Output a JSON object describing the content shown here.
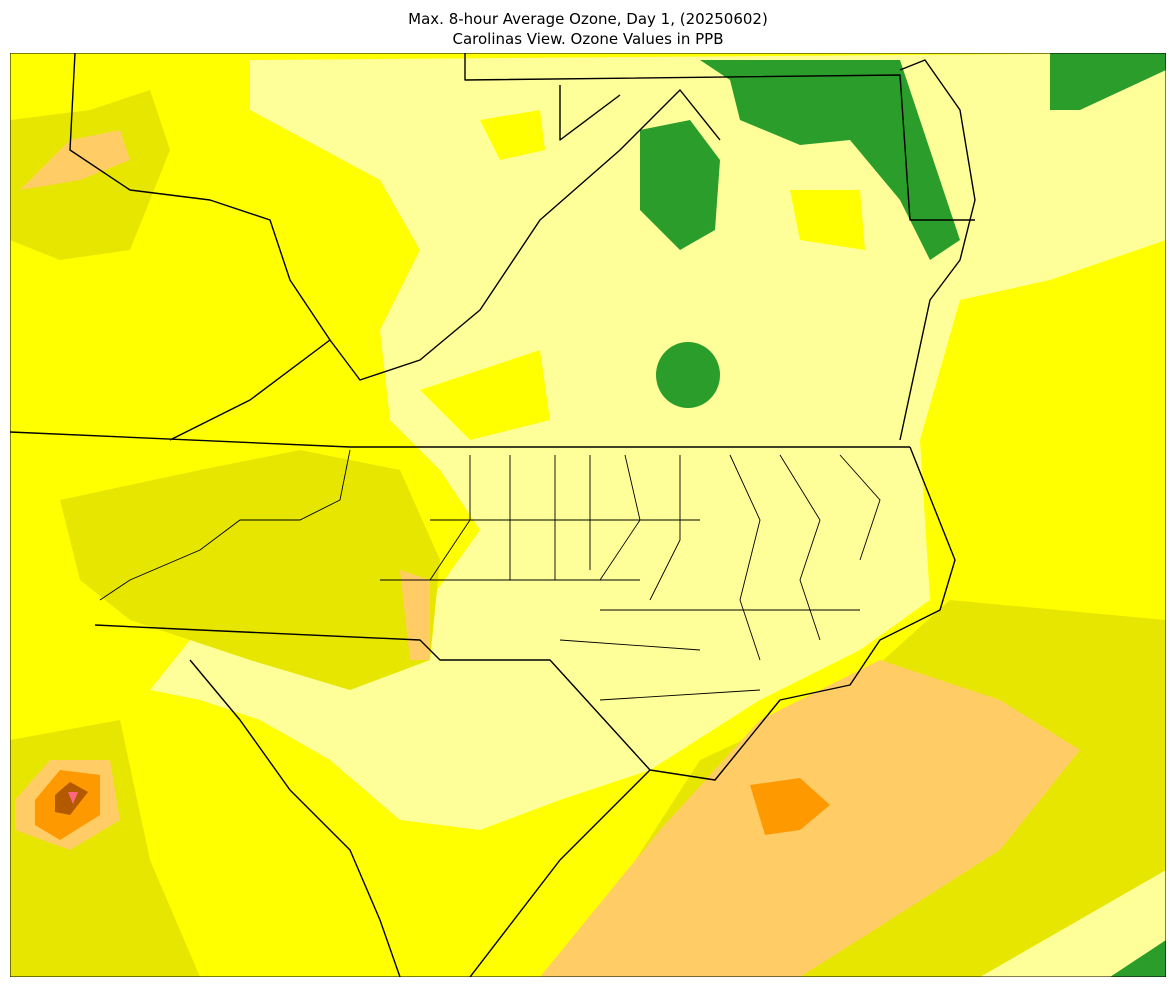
{
  "title": {
    "line1": "Max. 8-hour Average Ozone, Day 1, (20250602)",
    "line2": "Carolinas View. Ozone Values in PPB"
  }
}
